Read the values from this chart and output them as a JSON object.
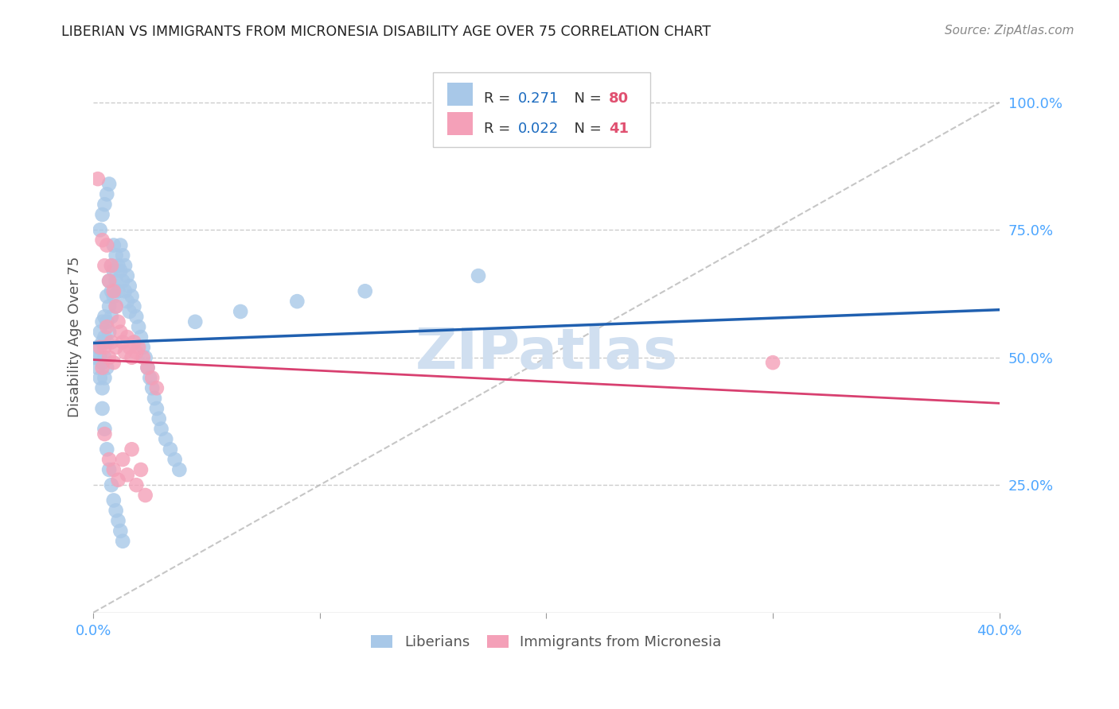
{
  "title": "LIBERIAN VS IMMIGRANTS FROM MICRONESIA DISABILITY AGE OVER 75 CORRELATION CHART",
  "source": "Source: ZipAtlas.com",
  "ylabel": "Disability Age Over 75",
  "xlim": [
    0.0,
    0.4
  ],
  "ylim": [
    0.0,
    1.08
  ],
  "liberian_R": 0.271,
  "liberian_N": 80,
  "micronesia_R": 0.022,
  "micronesia_N": 41,
  "liberian_color": "#a8c8e8",
  "micronesia_color": "#f4a0b8",
  "liberian_line_color": "#2060b0",
  "micronesia_line_color": "#d84070",
  "diagonal_line_color": "#b8b8b8",
  "background_color": "#ffffff",
  "grid_color": "#cccccc",
  "title_color": "#222222",
  "axis_tick_color": "#4da6ff",
  "legend_R_color": "#1a6abf",
  "legend_N_color": "#e05070",
  "watermark_color": "#d0dff0",
  "lib_x": [
    0.001,
    0.002,
    0.002,
    0.003,
    0.003,
    0.003,
    0.004,
    0.004,
    0.004,
    0.004,
    0.005,
    0.005,
    0.005,
    0.005,
    0.006,
    0.006,
    0.006,
    0.006,
    0.007,
    0.007,
    0.007,
    0.008,
    0.008,
    0.008,
    0.009,
    0.009,
    0.009,
    0.01,
    0.01,
    0.01,
    0.011,
    0.011,
    0.012,
    0.012,
    0.013,
    0.013,
    0.014,
    0.014,
    0.015,
    0.015,
    0.016,
    0.016,
    0.017,
    0.018,
    0.019,
    0.02,
    0.021,
    0.022,
    0.023,
    0.024,
    0.025,
    0.026,
    0.027,
    0.028,
    0.029,
    0.03,
    0.032,
    0.034,
    0.036,
    0.038,
    0.004,
    0.005,
    0.006,
    0.007,
    0.008,
    0.009,
    0.01,
    0.011,
    0.012,
    0.013,
    0.003,
    0.004,
    0.005,
    0.006,
    0.007,
    0.045,
    0.065,
    0.09,
    0.12,
    0.17
  ],
  "lib_y": [
    0.5,
    0.52,
    0.48,
    0.55,
    0.5,
    0.46,
    0.53,
    0.57,
    0.49,
    0.44,
    0.58,
    0.54,
    0.5,
    0.46,
    0.62,
    0.57,
    0.53,
    0.48,
    0.65,
    0.6,
    0.55,
    0.68,
    0.63,
    0.58,
    0.72,
    0.67,
    0.62,
    0.7,
    0.65,
    0.6,
    0.68,
    0.63,
    0.72,
    0.67,
    0.7,
    0.65,
    0.68,
    0.63,
    0.66,
    0.61,
    0.64,
    0.59,
    0.62,
    0.6,
    0.58,
    0.56,
    0.54,
    0.52,
    0.5,
    0.48,
    0.46,
    0.44,
    0.42,
    0.4,
    0.38,
    0.36,
    0.34,
    0.32,
    0.3,
    0.28,
    0.4,
    0.36,
    0.32,
    0.28,
    0.25,
    0.22,
    0.2,
    0.18,
    0.16,
    0.14,
    0.75,
    0.78,
    0.8,
    0.82,
    0.84,
    0.57,
    0.59,
    0.61,
    0.63,
    0.66
  ],
  "mic_x": [
    0.002,
    0.003,
    0.004,
    0.004,
    0.005,
    0.005,
    0.006,
    0.006,
    0.007,
    0.007,
    0.008,
    0.008,
    0.009,
    0.009,
    0.01,
    0.01,
    0.011,
    0.012,
    0.013,
    0.014,
    0.015,
    0.016,
    0.017,
    0.018,
    0.019,
    0.02,
    0.022,
    0.024,
    0.026,
    0.028,
    0.005,
    0.007,
    0.009,
    0.011,
    0.013,
    0.015,
    0.017,
    0.019,
    0.021,
    0.023,
    0.3
  ],
  "mic_y": [
    0.85,
    0.52,
    0.73,
    0.48,
    0.68,
    0.52,
    0.72,
    0.56,
    0.65,
    0.5,
    0.68,
    0.53,
    0.63,
    0.49,
    0.6,
    0.52,
    0.57,
    0.55,
    0.53,
    0.51,
    0.54,
    0.52,
    0.5,
    0.53,
    0.51,
    0.52,
    0.5,
    0.48,
    0.46,
    0.44,
    0.35,
    0.3,
    0.28,
    0.26,
    0.3,
    0.27,
    0.32,
    0.25,
    0.28,
    0.23,
    0.49
  ]
}
